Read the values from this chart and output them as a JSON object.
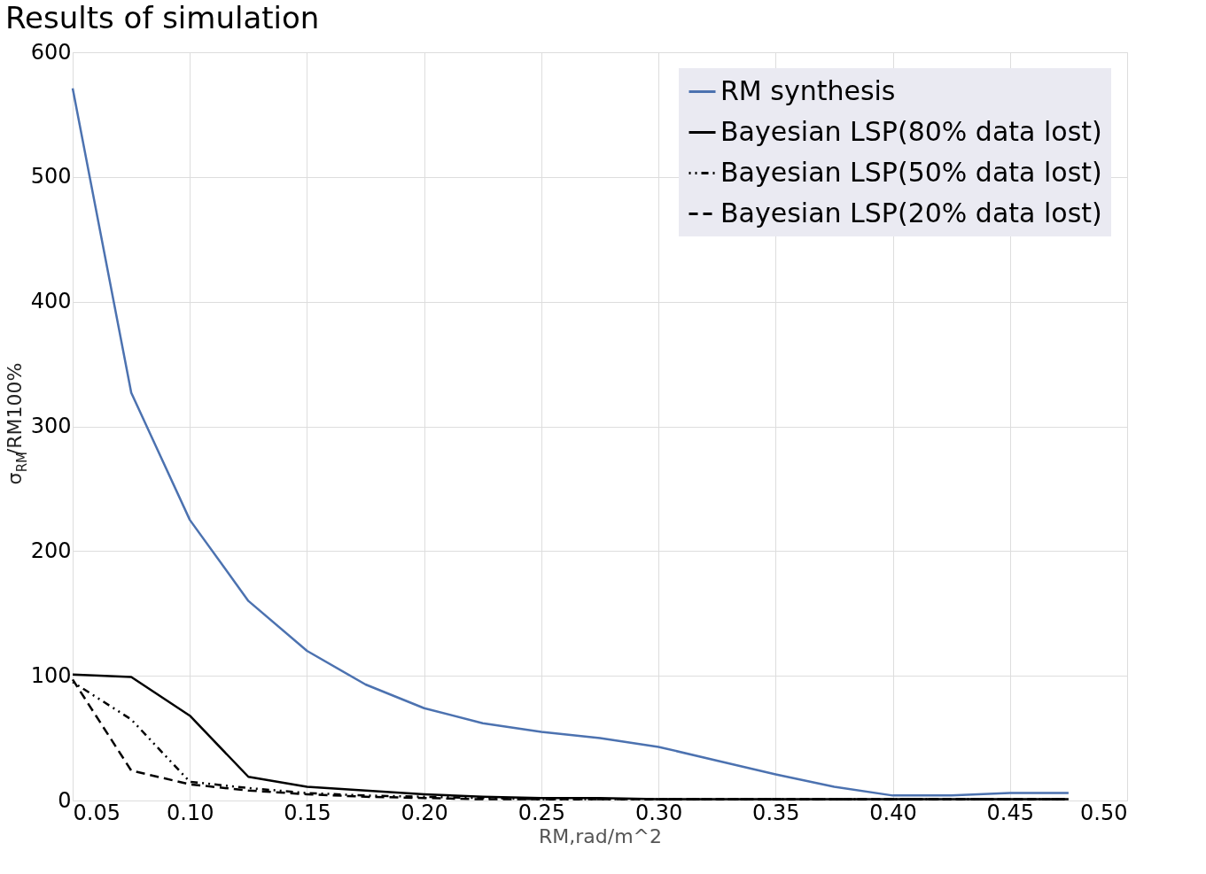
{
  "chart_data": {
    "type": "line",
    "title": "Results of simulation",
    "xlabel": "RM,rad/m^2",
    "ylabel": "σ$_{RM}$/RM100%",
    "x": [
      0.05,
      0.075,
      0.1,
      0.125,
      0.15,
      0.175,
      0.2,
      0.225,
      0.25,
      0.275,
      0.3,
      0.325,
      0.35,
      0.375,
      0.4,
      0.425,
      0.45,
      0.475
    ],
    "series": [
      {
        "name": "RM synthesis",
        "color": "#4c72b0",
        "line_style": "solid",
        "values": [
          571,
          327,
          225,
          160,
          120,
          93,
          74,
          62,
          55,
          50,
          43,
          32,
          21,
          11,
          4,
          4,
          6,
          6
        ]
      },
      {
        "name": "Bayesian LSP(80% data lost)",
        "color": "#000000",
        "line_style": "solid",
        "values": [
          101,
          99,
          68,
          19,
          11,
          8,
          5,
          3,
          2,
          2,
          1,
          1,
          1,
          1,
          1,
          1,
          1,
          1
        ]
      },
      {
        "name": "Bayesian LSP(50% data lost)",
        "color": "#000000",
        "line_style": "dashdot",
        "values": [
          95,
          65,
          15,
          10,
          6,
          4,
          3,
          2,
          1,
          1,
          1,
          1,
          1,
          1,
          1,
          1,
          1,
          1
        ]
      },
      {
        "name": "Bayesian LSP(20% data lost)",
        "color": "#000000",
        "line_style": "dashed",
        "values": [
          97,
          24,
          13,
          8,
          5,
          3,
          2,
          1,
          1,
          1,
          1,
          1,
          1,
          1,
          1,
          1,
          1,
          1
        ]
      }
    ],
    "xlim": [
      0.05,
      0.5
    ],
    "xticks": [
      0.05,
      {
        "value": 0.1,
        "label": "0.10"
      },
      0.15,
      {
        "value": 0.2,
        "label": "0.20"
      },
      0.25,
      {
        "value": 0.3,
        "label": "0.30"
      },
      0.35,
      {
        "value": 0.4,
        "label": "0.40"
      },
      0.45,
      {
        "value": 0.5,
        "label": "0.50"
      }
    ],
    "ylim": [
      0,
      600
    ],
    "yticks": [
      0,
      100,
      200,
      300,
      400,
      500,
      600
    ],
    "grid": true,
    "legend": "top right",
    "marker": "none"
  }
}
